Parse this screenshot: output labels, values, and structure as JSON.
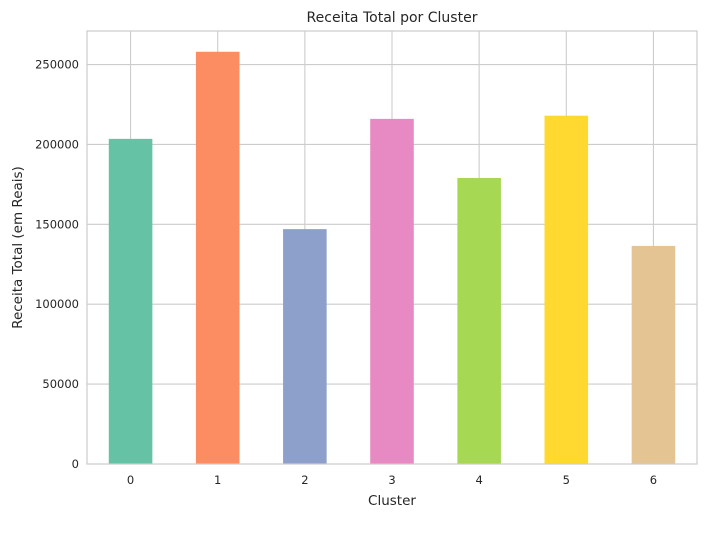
{
  "chart_data": {
    "type": "bar",
    "title": "Receita Total por Cluster",
    "xlabel": "Cluster",
    "ylabel": "Receita Total (em Reais)",
    "categories": [
      "0",
      "1",
      "2",
      "3",
      "4",
      "5",
      "6"
    ],
    "values": [
      203500,
      258000,
      147000,
      216000,
      179000,
      218000,
      136500
    ],
    "colors": [
      "#66c2a5",
      "#fc8d62",
      "#8da0cb",
      "#e78ac3",
      "#a6d854",
      "#ffd92f",
      "#e5c494"
    ],
    "ylim": [
      0,
      271000
    ],
    "yticks": [
      0,
      50000,
      100000,
      150000,
      200000,
      250000
    ],
    "ytick_labels": [
      "0",
      "50000",
      "100000",
      "150000",
      "200000",
      "250000"
    ],
    "grid": true,
    "legend": "none"
  }
}
